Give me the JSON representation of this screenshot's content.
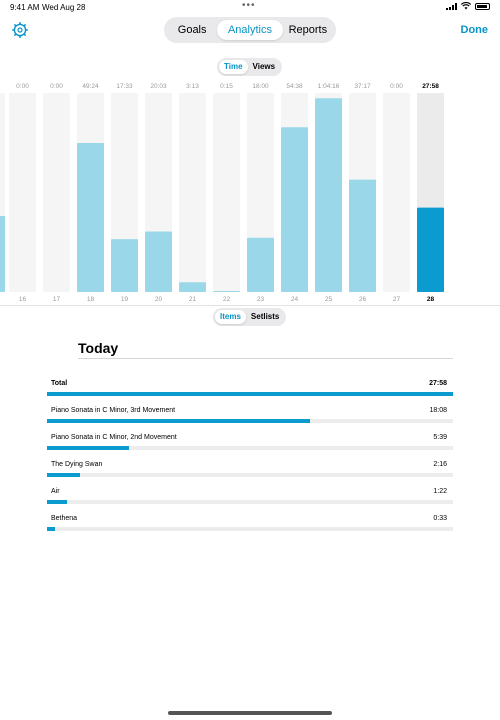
{
  "status_bar": {
    "time": "9:41 AM",
    "date": "Wed Aug 28",
    "dots": "•••",
    "battery_percent": 100
  },
  "header": {
    "settings_icon": "gear-icon",
    "done_label": "Done",
    "tabs": [
      {
        "label": "Goals",
        "active": false
      },
      {
        "label": "Analytics",
        "active": true
      },
      {
        "label": "Reports",
        "active": false
      }
    ]
  },
  "chart_toggle": [
    {
      "label": "Time",
      "active": true
    },
    {
      "label": "Views",
      "active": false
    }
  ],
  "chart_data": {
    "type": "bar",
    "categories": [
      "16",
      "17",
      "18",
      "19",
      "20",
      "21",
      "22",
      "23",
      "24",
      "25",
      "26",
      "27",
      "28"
    ],
    "value_labels": [
      "0:00",
      "0:00",
      "49:24",
      "17:33",
      "20:03",
      "3:13",
      "0:15",
      "18:00",
      "54:38",
      "1:04:16",
      "37:17",
      "0:00",
      "27:58"
    ],
    "values_minutes": [
      0,
      0,
      49.4,
      17.55,
      20.05,
      3.22,
      0.25,
      18.0,
      54.63,
      64.27,
      37.28,
      0,
      27.97
    ],
    "ylim": [
      0,
      66
    ],
    "selected": "28",
    "colors": {
      "bar": "#9ad8e9",
      "track": "#f5f5f5",
      "selected_bar": "#0b9bcf",
      "selected_track": "#ebebeb"
    }
  },
  "list_toggle": [
    {
      "label": "Items",
      "active": true
    },
    {
      "label": "Setlists",
      "active": false
    }
  ],
  "today": {
    "title": "Today",
    "items": [
      {
        "name": "Total",
        "time": "27:58",
        "fraction": 1.0
      },
      {
        "name": "Piano Sonata in C Minor, 3rd Movement",
        "time": "18:08",
        "fraction": 0.648
      },
      {
        "name": "Piano Sonata in C Minor, 2nd Movement",
        "time": "5:39",
        "fraction": 0.202
      },
      {
        "name": "The Dying Swan",
        "time": "2:16",
        "fraction": 0.081
      },
      {
        "name": "Air",
        "time": "1:22",
        "fraction": 0.049
      },
      {
        "name": "Bethena",
        "time": "0:33",
        "fraction": 0.02
      }
    ]
  }
}
